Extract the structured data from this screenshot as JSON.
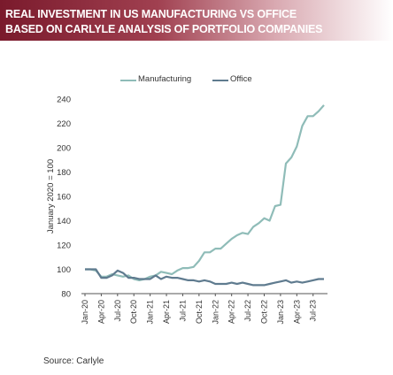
{
  "header": {
    "title_line1": "REAL INVESTMENT IN US MANUFACTURING VS OFFICE",
    "title_line2": "BASED ON CARLYLE ANALYSIS OF PORTFOLIO COMPANIES"
  },
  "source": "Source:  Carlyle",
  "colors": {
    "title_bar": "#8b2535",
    "manufacturing": "#8fbcb8",
    "office": "#5f7b8f"
  },
  "chart_data": {
    "type": "line",
    "title": "REAL INVESTMENT IN US MANUFACTURING VS OFFICE BASED ON CARLYLE ANALYSIS OF PORTFOLIO COMPANIES",
    "ylabel": "January 2020 = 100",
    "xlabel": "",
    "ylim": [
      80,
      240
    ],
    "yticks": [
      80,
      100,
      120,
      140,
      160,
      180,
      200,
      220,
      240
    ],
    "x": [
      "Jan-20",
      "Feb-20",
      "Mar-20",
      "Apr-20",
      "May-20",
      "Jun-20",
      "Jul-20",
      "Aug-20",
      "Sep-20",
      "Oct-20",
      "Nov-20",
      "Dec-20",
      "Jan-21",
      "Feb-21",
      "Mar-21",
      "Apr-21",
      "May-21",
      "Jun-21",
      "Jul-21",
      "Aug-21",
      "Sep-21",
      "Oct-21",
      "Nov-21",
      "Dec-21",
      "Jan-22",
      "Feb-22",
      "Mar-22",
      "Apr-22",
      "May-22",
      "Jun-22",
      "Jul-22",
      "Aug-22",
      "Sep-22",
      "Oct-22",
      "Nov-22",
      "Dec-22",
      "Jan-23",
      "Feb-23",
      "Mar-23",
      "Apr-23",
      "May-23",
      "Jun-23",
      "Jul-23",
      "Aug-23",
      "Sep-23"
    ],
    "xticks": [
      "Jan-20",
      "Apr-20",
      "Jul-20",
      "Oct-20",
      "Jan-21",
      "Apr-21",
      "Jul-21",
      "Oct-21",
      "Jan-22",
      "Apr-22",
      "Jul-22",
      "Oct-22",
      "Jan-23",
      "Apr-23",
      "Jul-23"
    ],
    "legend_position": "top",
    "grid": false,
    "series": [
      {
        "name": "Manufacturing",
        "color": "#8fbcb8",
        "values": [
          100,
          100,
          99,
          94,
          94,
          96,
          95,
          94,
          95,
          92,
          91,
          92,
          94,
          95,
          98,
          97,
          96,
          99,
          101,
          101,
          102,
          107,
          114,
          114,
          117,
          117,
          121,
          125,
          128,
          130,
          129,
          135,
          138,
          142,
          140,
          152,
          153,
          187,
          192,
          201,
          218,
          226,
          226,
          230,
          235
        ]
      },
      {
        "name": "Office",
        "color": "#5f7b8f",
        "values": [
          100,
          100,
          100,
          93,
          93,
          95,
          99,
          97,
          93,
          93,
          92,
          92,
          92,
          95,
          92,
          94,
          93,
          93,
          92,
          91,
          91,
          90,
          91,
          90,
          88,
          88,
          88,
          89,
          88,
          89,
          88,
          87,
          87,
          87,
          88,
          89,
          90,
          91,
          89,
          90,
          89,
          90,
          91,
          92,
          92
        ]
      }
    ]
  }
}
